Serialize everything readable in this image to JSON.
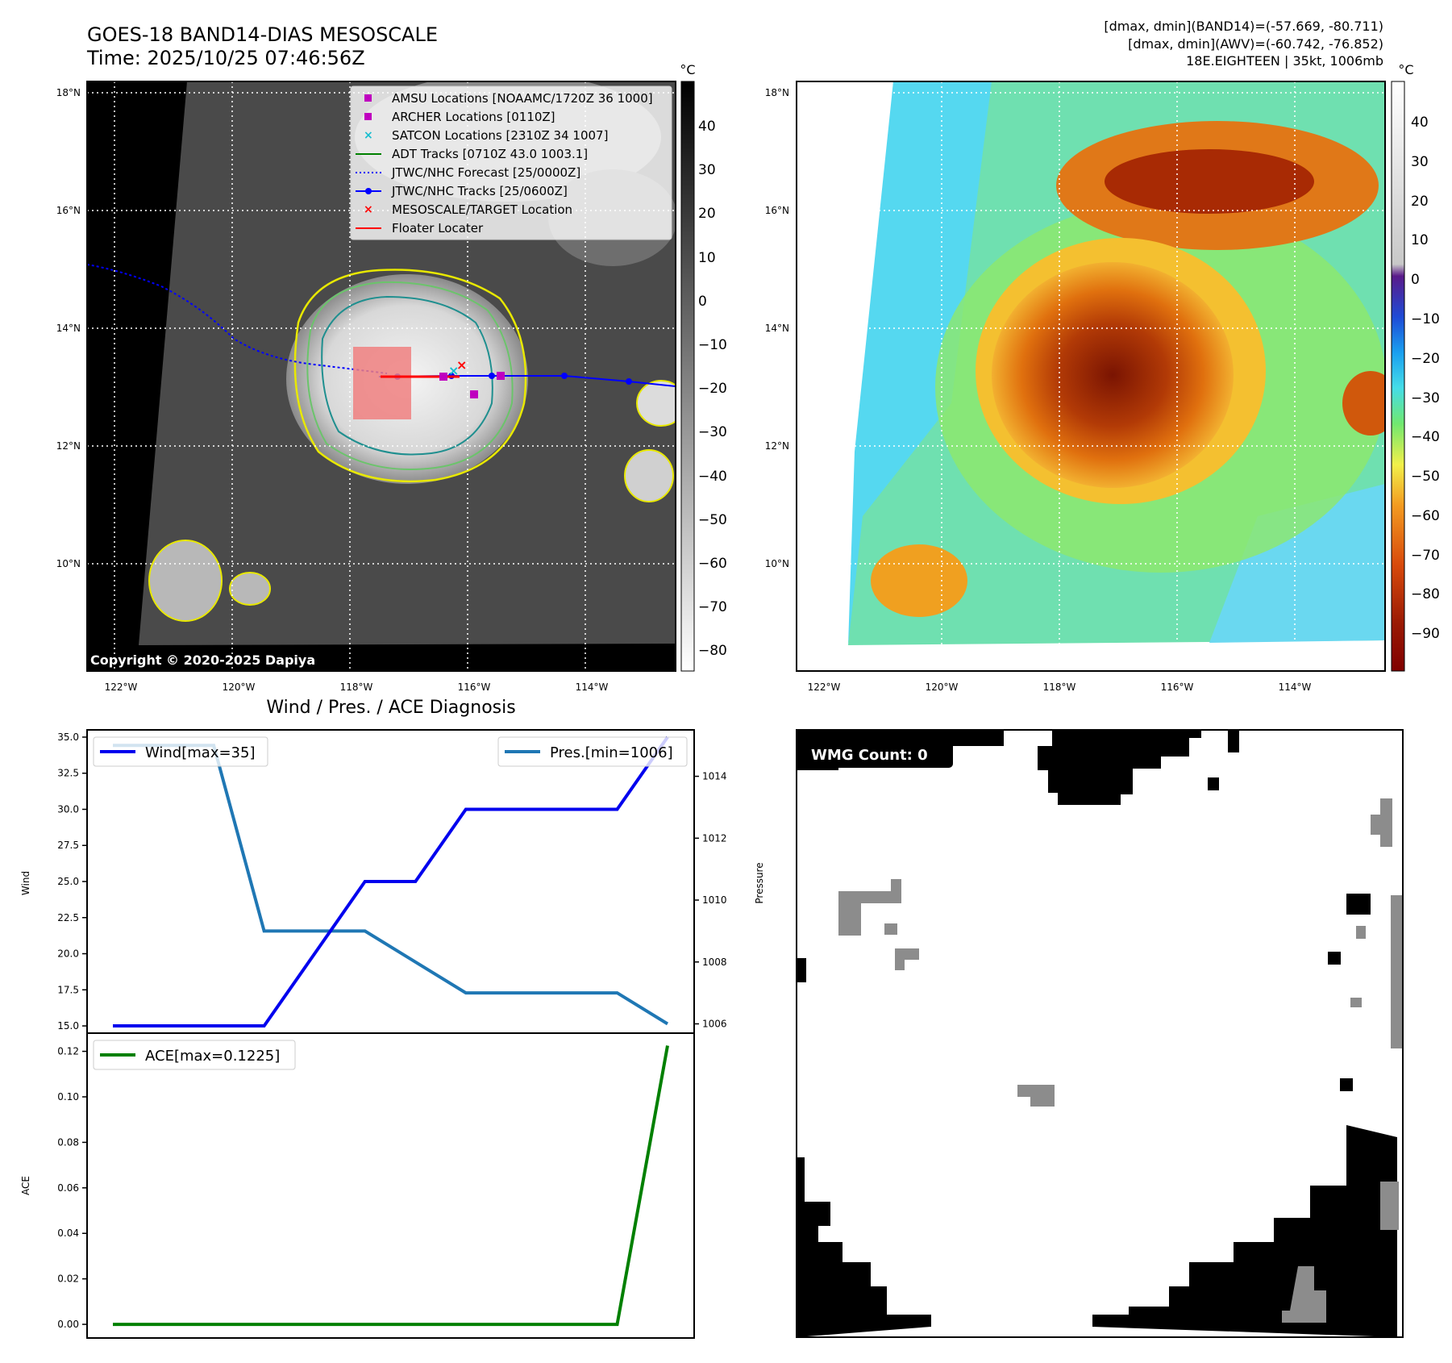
{
  "figure": {
    "title_line1": "GOES-18 BAND14-DIAS MESOSCALE",
    "title_line2": "Time: 2025/10/25 07:46:56Z",
    "info_line1": "[dmax, dmin](BAND14)=(-57.669, -80.711)",
    "info_line2": "[dmax, dmin](AWV)=(-60.742, -76.852)",
    "info_line3": "18E.EIGHTEEN | 35kt, 1006mb",
    "copyright": "Copyright © 2020-2025 Dapiya",
    "wmg_label": "WMG Count: 0",
    "diag_title": "Wind / Pres. / ACE Diagnosis",
    "unit_label": "°C"
  },
  "colors": {
    "wind": "#0000ee",
    "pressure": "#1f77b4",
    "ace": "#008000",
    "amsu": "#bf00bf",
    "satcon": "#17becf",
    "forecast": "#0000ff",
    "floater": "#ff0000",
    "floater_box": "#f08080"
  },
  "map": {
    "lon_labels": [
      "122°W",
      "120°W",
      "118°W",
      "116°W",
      "114°W"
    ],
    "lat_labels": [
      "18°N",
      "16°N",
      "14°N",
      "12°N",
      "10°N"
    ],
    "legend": [
      {
        "label": "AMSU Locations [NOAAMC/1720Z 36 1000]",
        "marker": "square-magenta"
      },
      {
        "label": "ARCHER Locations [0110Z]",
        "marker": "square-magenta"
      },
      {
        "label": "SATCON Locations [2310Z 34 1007]",
        "marker": "x-cyan"
      },
      {
        "label": "ADT Tracks [0710Z 43.0 1003.1]",
        "marker": "line-green"
      },
      {
        "label": "JTWC/NHC Forecast [25/0000Z]",
        "marker": "dotted-blue"
      },
      {
        "label": "JTWC/NHC Tracks [25/0600Z]",
        "marker": "line-dot-blue"
      },
      {
        "label": "MESOSCALE/TARGET Location",
        "marker": "x-red"
      },
      {
        "label": "Floater Locater",
        "marker": "line-red"
      }
    ],
    "colorbar_gray_ticks": [
      "40",
      "30",
      "20",
      "10",
      "0",
      "−10",
      "−20",
      "−30",
      "−40",
      "−50",
      "−60",
      "−70",
      "−80"
    ],
    "colorbar_awv_ticks": [
      "40",
      "30",
      "20",
      "10",
      "0",
      "−10",
      "−20",
      "−30",
      "−40",
      "−50",
      "−60",
      "−70",
      "−80",
      "−90"
    ]
  },
  "chart_data": [
    {
      "type": "line",
      "x": [
        0,
        1,
        2,
        3,
        4,
        5,
        6,
        7,
        8,
        9,
        10,
        11
      ],
      "series": [
        {
          "name": "Wind[max=35]",
          "axis": "left",
          "values": [
            15,
            15,
            15,
            15,
            20,
            25,
            25,
            30,
            30,
            30,
            30,
            35
          ]
        },
        {
          "name": "Pres.[min=1006]",
          "axis": "right",
          "values": [
            1015,
            1015,
            1015,
            1009,
            1009,
            1009,
            1008,
            1007,
            1007,
            1007,
            1007,
            1006
          ]
        }
      ],
      "ylabel": "Wind",
      "y2label": "Pressure",
      "ylim": [
        14.5,
        35.5
      ],
      "y2lim": [
        1005.7,
        1015.5
      ],
      "yticks": [
        "15.0",
        "17.5",
        "20.0",
        "22.5",
        "25.0",
        "27.5",
        "30.0",
        "32.5",
        "35.0"
      ],
      "y2ticks": [
        "1006",
        "1008",
        "1010",
        "1012",
        "1014"
      ]
    },
    {
      "type": "line",
      "x": [
        0,
        1,
        2,
        3,
        4,
        5,
        6,
        7,
        8,
        9,
        10,
        11
      ],
      "series": [
        {
          "name": "ACE[max=0.1225]",
          "values": [
            0,
            0,
            0,
            0,
            0,
            0,
            0,
            0,
            0,
            0,
            0,
            0.1225
          ]
        }
      ],
      "ylabel": "ACE",
      "ylim": [
        -0.006,
        0.128
      ],
      "yticks": [
        "0.00",
        "0.02",
        "0.04",
        "0.06",
        "0.08",
        "0.10",
        "0.12"
      ]
    }
  ]
}
